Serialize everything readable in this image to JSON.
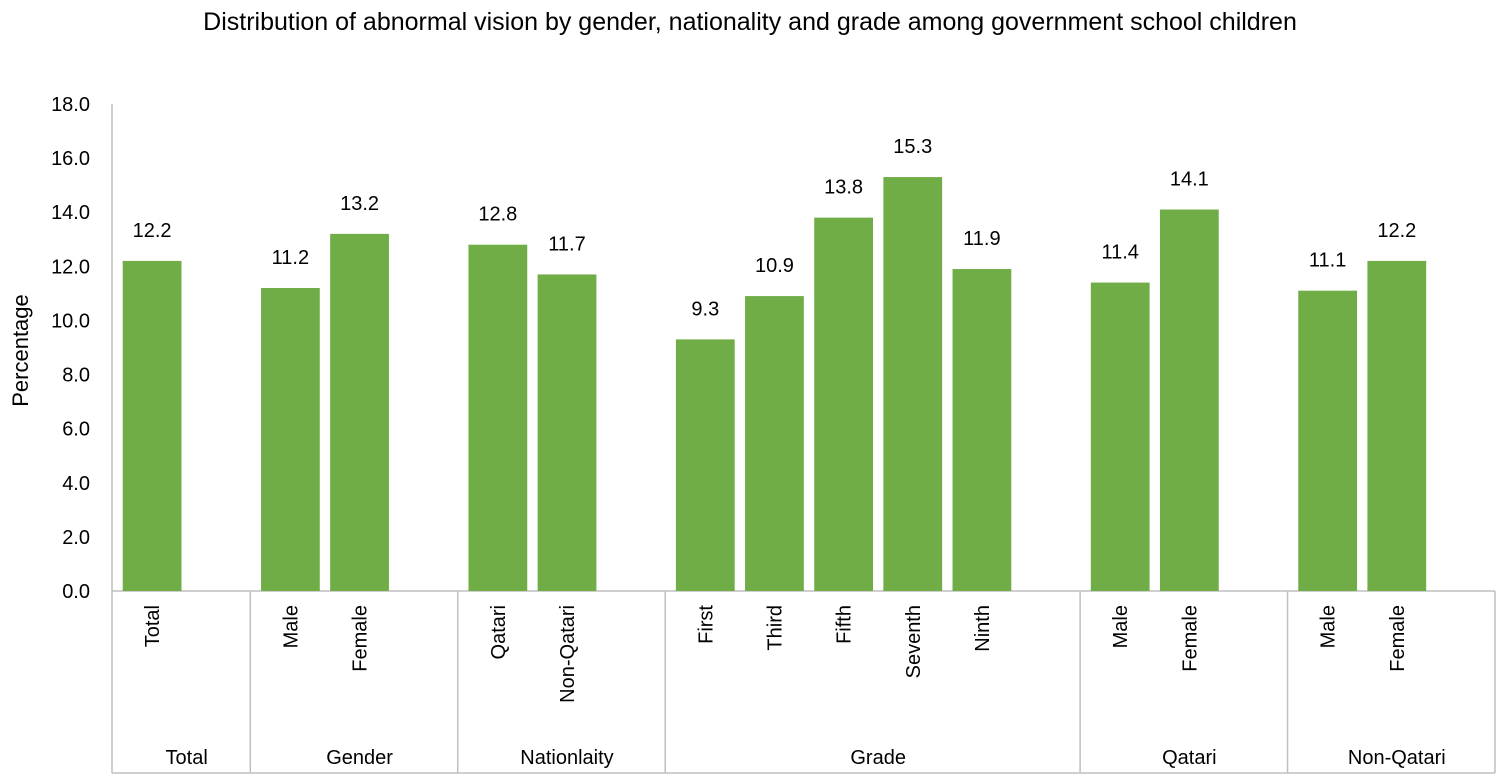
{
  "chart_data": {
    "type": "bar",
    "title": "Distribution of abnormal vision by gender, nationality and grade among government school children",
    "xlabel": "",
    "ylabel": "Percentage",
    "ylim": [
      0,
      18
    ],
    "ytick_step": 2,
    "ytick_labels": [
      "0.0",
      "2.0",
      "4.0",
      "6.0",
      "8.0",
      "10.0",
      "12.0",
      "14.0",
      "16.0",
      "18.0"
    ],
    "grid": false,
    "legend": "none",
    "bar_color": "#70AD47",
    "groups": [
      {
        "label": "Total",
        "categories": [
          "Total"
        ],
        "values": [
          12.2
        ],
        "value_labels": [
          "12.2"
        ]
      },
      {
        "label": "Gender",
        "categories": [
          "Male",
          "Female"
        ],
        "values": [
          11.2,
          13.2
        ],
        "value_labels": [
          "11.2",
          "13.2"
        ]
      },
      {
        "label": "Nationlaity",
        "categories": [
          "Qatari",
          "Non-Qatari"
        ],
        "values": [
          12.8,
          11.7
        ],
        "value_labels": [
          "12.8",
          "11.7"
        ]
      },
      {
        "label": "Grade",
        "categories": [
          "First",
          "Third",
          "Fifth",
          "Seventh",
          "Ninth"
        ],
        "values": [
          9.3,
          10.9,
          13.8,
          15.3,
          11.9
        ],
        "value_labels": [
          "9.3",
          "10.9",
          "13.8",
          "15.3",
          "11.9"
        ]
      },
      {
        "label": "Qatari",
        "categories": [
          "Male",
          "Female"
        ],
        "values": [
          11.4,
          14.1
        ],
        "value_labels": [
          "11.4",
          "14.1"
        ]
      },
      {
        "label": "Non-Qatari",
        "categories": [
          "Male",
          "Female"
        ],
        "values": [
          11.1,
          12.2
        ],
        "value_labels": [
          "11.1",
          "12.2"
        ]
      }
    ]
  }
}
